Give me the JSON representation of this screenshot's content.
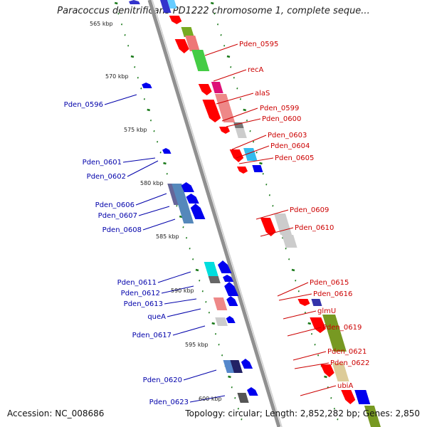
{
  "title": "Paracoccus denitrificans PD1222 chromosome 1, complete seque...",
  "footer": {
    "accession": "Accession: NC_008686",
    "summary": "Topology: circular; Length: 2,852,282 bp; Genes: 2,850"
  },
  "colors": {
    "forward_label": "#cc0000",
    "reverse_label": "#0000aa",
    "backbone": "#8a8a8a",
    "ticks": "#1a7a1a"
  },
  "kbp_markers": [
    "565 kbp",
    "570 kbp",
    "575 kbp",
    "580 kbp",
    "585 kbp",
    "590 kbp",
    "595 kbp",
    "600 kbp"
  ],
  "forward_labels": [
    "Pden_0595",
    "recA",
    "alaS",
    "Pden_0599",
    "Pden_0600",
    "Pden_0603",
    "Pden_0604",
    "Pden_0605",
    "Pden_0609",
    "Pden_0610",
    "Pden_0615",
    "Pden_0616",
    "glmU",
    "Pden_0619",
    "Pden_0621",
    "Pden_0622",
    "ubiA"
  ],
  "reverse_labels": [
    "Pden_0596",
    "Pden_0601",
    "Pden_0602",
    "Pden_0606",
    "Pden_0607",
    "Pden_0608",
    "Pden_0611",
    "Pden_0612",
    "Pden_0613",
    "queA",
    "Pden_0617",
    "Pden_0620",
    "Pden_0623"
  ]
}
